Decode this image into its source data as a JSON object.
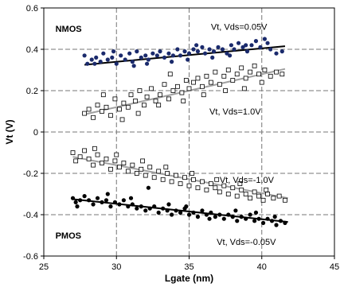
{
  "chart_data": {
    "type": "scatter",
    "xlabel": "Lgate (nm)",
    "ylabel": "Vt (V)",
    "xlim": [
      25,
      45
    ],
    "ylim": [
      -0.6,
      0.6
    ],
    "x_ticks": [
      25,
      30,
      35,
      40,
      45
    ],
    "y_ticks": [
      -0.6,
      -0.4,
      -0.2,
      0,
      0.2,
      0.4,
      0.6
    ],
    "x_tick_labels": [
      "25",
      "30",
      "35",
      "40",
      "45"
    ],
    "y_tick_labels": [
      "-0.6",
      "-0.4",
      "-0.2",
      "0",
      "0.2",
      "0.4",
      "0.6"
    ],
    "grid": "dashed",
    "annotations": [
      {
        "text": "NMOS",
        "x": 25.8,
        "y": 0.5,
        "weight": "bold"
      },
      {
        "text": "PMOS",
        "x": 25.8,
        "y": -0.5,
        "weight": "bold"
      },
      {
        "text": "Vt, Vds=0.05V",
        "x": 36.5,
        "y": 0.51
      },
      {
        "text": "Vt, Vds=1.0V",
        "x": 36.4,
        "y": 0.1
      },
      {
        "text": "Vt, Vds=-1.0V",
        "x": 37.1,
        "y": -0.23
      },
      {
        "text": "Vt, Vds=-0.05V",
        "x": 36.9,
        "y": -0.53
      }
    ],
    "series": [
      {
        "marker": "filled-circle",
        "color": "#1a2a6c",
        "trend_color": "#000000",
        "trend": {
          "x": [
            27.8,
            41.6
          ],
          "y": [
            0.325,
            0.415
          ]
        },
        "points": [
          [
            27.8,
            0.37
          ],
          [
            28.0,
            0.33
          ],
          [
            28.3,
            0.35
          ],
          [
            28.6,
            0.36
          ],
          [
            28.9,
            0.34
          ],
          [
            29.1,
            0.38
          ],
          [
            29.4,
            0.35
          ],
          [
            29.7,
            0.36
          ],
          [
            30.0,
            0.33
          ],
          [
            30.3,
            0.37
          ],
          [
            30.6,
            0.35
          ],
          [
            30.9,
            0.38
          ],
          [
            31.1,
            0.34
          ],
          [
            31.4,
            0.39
          ],
          [
            31.7,
            0.36
          ],
          [
            32.0,
            0.37
          ],
          [
            32.2,
            0.35
          ],
          [
            32.5,
            0.38
          ],
          [
            32.8,
            0.37
          ],
          [
            33.0,
            0.39
          ],
          [
            33.3,
            0.36
          ],
          [
            33.6,
            0.38
          ],
          [
            33.9,
            0.37
          ],
          [
            34.2,
            0.4
          ],
          [
            34.4,
            0.37
          ],
          [
            34.7,
            0.39
          ],
          [
            35.0,
            0.38
          ],
          [
            35.3,
            0.4
          ],
          [
            35.6,
            0.39
          ],
          [
            35.9,
            0.41
          ],
          [
            36.1,
            0.38
          ],
          [
            36.4,
            0.4
          ],
          [
            36.7,
            0.39
          ],
          [
            37.0,
            0.41
          ],
          [
            37.3,
            0.4
          ],
          [
            37.6,
            0.38
          ],
          [
            37.9,
            0.42
          ],
          [
            38.1,
            0.4
          ],
          [
            38.4,
            0.43
          ],
          [
            38.7,
            0.41
          ],
          [
            39.0,
            0.39
          ],
          [
            39.3,
            0.42
          ],
          [
            39.6,
            0.44
          ],
          [
            39.9,
            0.41
          ],
          [
            40.2,
            0.45
          ],
          [
            40.6,
            0.4
          ],
          [
            41.0,
            0.38
          ],
          [
            41.4,
            0.39
          ],
          [
            28.5,
            0.33
          ],
          [
            29.8,
            0.39
          ],
          [
            31.2,
            0.32
          ],
          [
            33.8,
            0.34
          ],
          [
            35.5,
            0.42
          ],
          [
            36.6,
            0.36
          ],
          [
            37.8,
            0.37
          ],
          [
            38.9,
            0.42
          ],
          [
            40.4,
            0.43
          ],
          [
            32.1,
            0.33
          ],
          [
            34.9,
            0.35
          ]
        ]
      },
      {
        "marker": "open-square",
        "color": "#000000",
        "trend_color": "#a0a0a0",
        "trend": {
          "x": [
            27.8,
            41.6
          ],
          "y": [
            0.085,
            0.305
          ]
        },
        "points": [
          [
            27.8,
            0.09
          ],
          [
            28.1,
            0.11
          ],
          [
            28.4,
            0.07
          ],
          [
            28.7,
            0.13
          ],
          [
            29.0,
            0.1
          ],
          [
            29.3,
            0.12
          ],
          [
            29.6,
            0.08
          ],
          [
            29.9,
            0.16
          ],
          [
            30.2,
            0.11
          ],
          [
            30.5,
            0.14
          ],
          [
            30.8,
            0.12
          ],
          [
            31.0,
            0.18
          ],
          [
            31.3,
            0.15
          ],
          [
            31.6,
            0.2
          ],
          [
            31.9,
            0.13
          ],
          [
            32.1,
            0.17
          ],
          [
            32.4,
            0.21
          ],
          [
            32.7,
            0.15
          ],
          [
            33.0,
            0.18
          ],
          [
            33.3,
            0.23
          ],
          [
            33.6,
            0.16
          ],
          [
            33.9,
            0.2
          ],
          [
            34.2,
            0.22
          ],
          [
            34.5,
            0.19
          ],
          [
            34.8,
            0.25
          ],
          [
            35.0,
            0.21
          ],
          [
            35.3,
            0.24
          ],
          [
            35.6,
            0.26
          ],
          [
            35.9,
            0.22
          ],
          [
            36.2,
            0.27
          ],
          [
            36.5,
            0.24
          ],
          [
            36.8,
            0.29
          ],
          [
            37.1,
            0.23
          ],
          [
            37.4,
            0.27
          ],
          [
            37.7,
            0.3
          ],
          [
            38.0,
            0.25
          ],
          [
            38.3,
            0.28
          ],
          [
            38.6,
            0.31
          ],
          [
            38.9,
            0.26
          ],
          [
            39.2,
            0.29
          ],
          [
            39.5,
            0.32
          ],
          [
            39.8,
            0.28
          ],
          [
            40.2,
            0.3
          ],
          [
            40.6,
            0.27
          ],
          [
            41.0,
            0.29
          ],
          [
            41.4,
            0.28
          ],
          [
            30.4,
            0.06
          ],
          [
            31.5,
            0.09
          ],
          [
            32.9,
            0.13
          ],
          [
            34.6,
            0.15
          ],
          [
            36.0,
            0.18
          ],
          [
            37.5,
            0.2
          ],
          [
            38.8,
            0.21
          ],
          [
            40.0,
            0.24
          ],
          [
            29.1,
            0.18
          ],
          [
            33.7,
            0.28
          ]
        ]
      },
      {
        "marker": "open-square",
        "color": "#000000",
        "trend_color": "#a0a0a0",
        "trend": {
          "x": [
            27.0,
            41.8
          ],
          "y": [
            -0.12,
            -0.32
          ]
        },
        "points": [
          [
            27.0,
            -0.1
          ],
          [
            27.2,
            -0.14
          ],
          [
            27.5,
            -0.12
          ],
          [
            27.8,
            -0.09
          ],
          [
            28.1,
            -0.13
          ],
          [
            28.4,
            -0.16
          ],
          [
            28.7,
            -0.11
          ],
          [
            29.0,
            -0.15
          ],
          [
            29.3,
            -0.13
          ],
          [
            29.6,
            -0.18
          ],
          [
            29.9,
            -0.14
          ],
          [
            30.2,
            -0.17
          ],
          [
            30.5,
            -0.15
          ],
          [
            30.8,
            -0.19
          ],
          [
            31.1,
            -0.16
          ],
          [
            31.4,
            -0.2
          ],
          [
            31.7,
            -0.18
          ],
          [
            32.0,
            -0.21
          ],
          [
            32.3,
            -0.17
          ],
          [
            32.6,
            -0.22
          ],
          [
            32.9,
            -0.19
          ],
          [
            33.2,
            -0.23
          ],
          [
            33.5,
            -0.2
          ],
          [
            33.8,
            -0.24
          ],
          [
            34.1,
            -0.21
          ],
          [
            34.4,
            -0.25
          ],
          [
            34.7,
            -0.22
          ],
          [
            35.0,
            -0.26
          ],
          [
            35.3,
            -0.23
          ],
          [
            35.6,
            -0.27
          ],
          [
            35.9,
            -0.24
          ],
          [
            36.2,
            -0.28
          ],
          [
            36.5,
            -0.25
          ],
          [
            36.8,
            -0.27
          ],
          [
            37.1,
            -0.29
          ],
          [
            37.4,
            -0.26
          ],
          [
            37.7,
            -0.3
          ],
          [
            38.0,
            -0.27
          ],
          [
            38.3,
            -0.31
          ],
          [
            38.6,
            -0.28
          ],
          [
            38.9,
            -0.3
          ],
          [
            39.2,
            -0.32
          ],
          [
            39.5,
            -0.29
          ],
          [
            39.8,
            -0.31
          ],
          [
            40.1,
            -0.33
          ],
          [
            40.4,
            -0.3
          ],
          [
            40.8,
            -0.32
          ],
          [
            41.2,
            -0.31
          ],
          [
            41.6,
            -0.33
          ],
          [
            28.5,
            -0.08
          ],
          [
            30.0,
            -0.11
          ],
          [
            31.8,
            -0.14
          ],
          [
            33.4,
            -0.17
          ],
          [
            35.2,
            -0.2
          ],
          [
            36.9,
            -0.23
          ],
          [
            38.5,
            -0.25
          ],
          [
            40.3,
            -0.28
          ]
        ]
      },
      {
        "marker": "filled-circle",
        "color": "#000000",
        "trend_color": "#000000",
        "trend": {
          "x": [
            27.0,
            41.8
          ],
          "y": [
            -0.325,
            -0.435
          ]
        },
        "points": [
          [
            27.0,
            -0.32
          ],
          [
            27.2,
            -0.34
          ],
          [
            27.5,
            -0.33
          ],
          [
            27.8,
            -0.31
          ],
          [
            28.1,
            -0.33
          ],
          [
            28.4,
            -0.35
          ],
          [
            28.7,
            -0.32
          ],
          [
            29.0,
            -0.34
          ],
          [
            29.3,
            -0.33
          ],
          [
            29.6,
            -0.36
          ],
          [
            29.9,
            -0.34
          ],
          [
            30.2,
            -0.35
          ],
          [
            30.5,
            -0.33
          ],
          [
            30.8,
            -0.36
          ],
          [
            31.1,
            -0.35
          ],
          [
            31.4,
            -0.37
          ],
          [
            31.7,
            -0.36
          ],
          [
            32.0,
            -0.38
          ],
          [
            32.3,
            -0.37
          ],
          [
            32.6,
            -0.36
          ],
          [
            32.9,
            -0.39
          ],
          [
            33.2,
            -0.37
          ],
          [
            33.5,
            -0.38
          ],
          [
            33.8,
            -0.4
          ],
          [
            34.1,
            -0.38
          ],
          [
            34.4,
            -0.39
          ],
          [
            34.7,
            -0.37
          ],
          [
            35.0,
            -0.4
          ],
          [
            35.3,
            -0.39
          ],
          [
            35.6,
            -0.41
          ],
          [
            35.9,
            -0.38
          ],
          [
            36.2,
            -0.4
          ],
          [
            36.5,
            -0.39
          ],
          [
            36.8,
            -0.41
          ],
          [
            37.1,
            -0.4
          ],
          [
            37.4,
            -0.42
          ],
          [
            37.7,
            -0.4
          ],
          [
            38.0,
            -0.41
          ],
          [
            38.3,
            -0.43
          ],
          [
            38.6,
            -0.41
          ],
          [
            38.9,
            -0.42
          ],
          [
            39.2,
            -0.4
          ],
          [
            39.5,
            -0.43
          ],
          [
            39.8,
            -0.42
          ],
          [
            40.1,
            -0.44
          ],
          [
            40.4,
            -0.42
          ],
          [
            40.7,
            -0.43
          ],
          [
            41.0,
            -0.45
          ],
          [
            41.3,
            -0.43
          ],
          [
            41.6,
            -0.44
          ],
          [
            27.3,
            -0.36
          ],
          [
            29.4,
            -0.3
          ],
          [
            31.0,
            -0.32
          ],
          [
            32.2,
            -0.27
          ],
          [
            33.6,
            -0.35
          ],
          [
            34.8,
            -0.36
          ],
          [
            36.4,
            -0.42
          ],
          [
            38.2,
            -0.38
          ],
          [
            39.6,
            -0.39
          ],
          [
            40.9,
            -0.41
          ]
        ]
      }
    ]
  }
}
